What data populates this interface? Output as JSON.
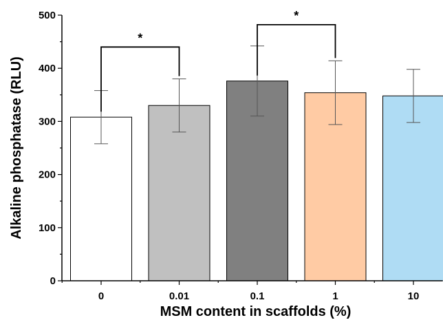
{
  "chart_data": {
    "type": "bar",
    "title": "",
    "xlabel": "MSM content in scaffolds (%)",
    "ylabel": "Alkaline phosphatase (RLU)",
    "ylim": [
      0,
      500
    ],
    "yticks": [
      0,
      100,
      200,
      300,
      400,
      500
    ],
    "categories": [
      "0",
      "0.01",
      "0.1",
      "1",
      "10"
    ],
    "values": [
      308,
      330,
      376,
      354,
      348
    ],
    "errors": [
      [
        258,
        358
      ],
      [
        280,
        380
      ],
      [
        310,
        442
      ],
      [
        294,
        414
      ],
      [
        298,
        398
      ]
    ],
    "bar_colors": [
      "#ffffff",
      "#c0c0c0",
      "#808080",
      "#ffcba4",
      "#afdcf4"
    ],
    "grid": false,
    "significance": [
      {
        "from": 0,
        "to": 1,
        "label": "*",
        "y": 440
      },
      {
        "from": 2,
        "to": 3,
        "label": "*",
        "y": 482
      }
    ]
  }
}
